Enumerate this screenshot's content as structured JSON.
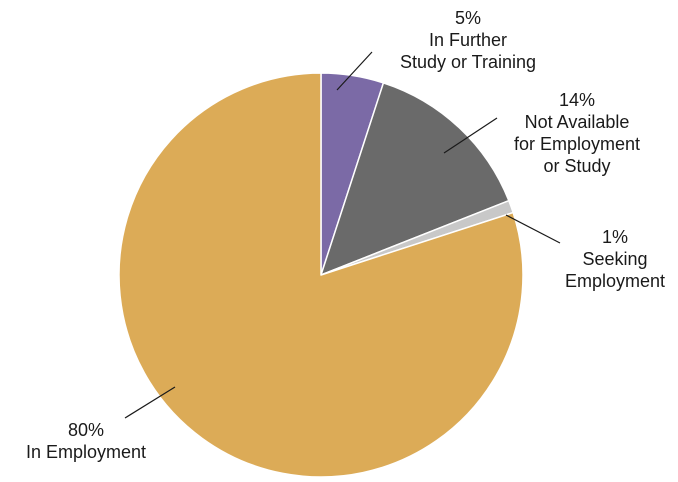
{
  "chart_data": {
    "type": "pie",
    "series": [
      {
        "category": "In Further Study or Training",
        "value": 5,
        "percent_label": "5%",
        "label_lines": [
          "5%",
          "In Further",
          "Study or Training"
        ],
        "color": "#7b6aa6"
      },
      {
        "category": "Not Available for Employment or Study",
        "value": 14,
        "percent_label": "14%",
        "label_lines": [
          "14%",
          "Not Available",
          "for Employment",
          "or Study"
        ],
        "color": "#6a6a6a"
      },
      {
        "category": "Seeking Employment",
        "value": 1,
        "percent_label": "1%",
        "label_lines": [
          "1%",
          "Seeking",
          "Employment"
        ],
        "color": "#c8c8c8"
      },
      {
        "category": "In Employment",
        "value": 80,
        "percent_label": "80%",
        "label_lines": [
          "80%",
          "In Employment"
        ],
        "color": "#dcab57"
      }
    ],
    "start_angle_deg": 0,
    "direction": "clockwise",
    "slice_border_color": "#ffffff",
    "leader_line_color": "#1a1a1a",
    "legend": "none"
  }
}
